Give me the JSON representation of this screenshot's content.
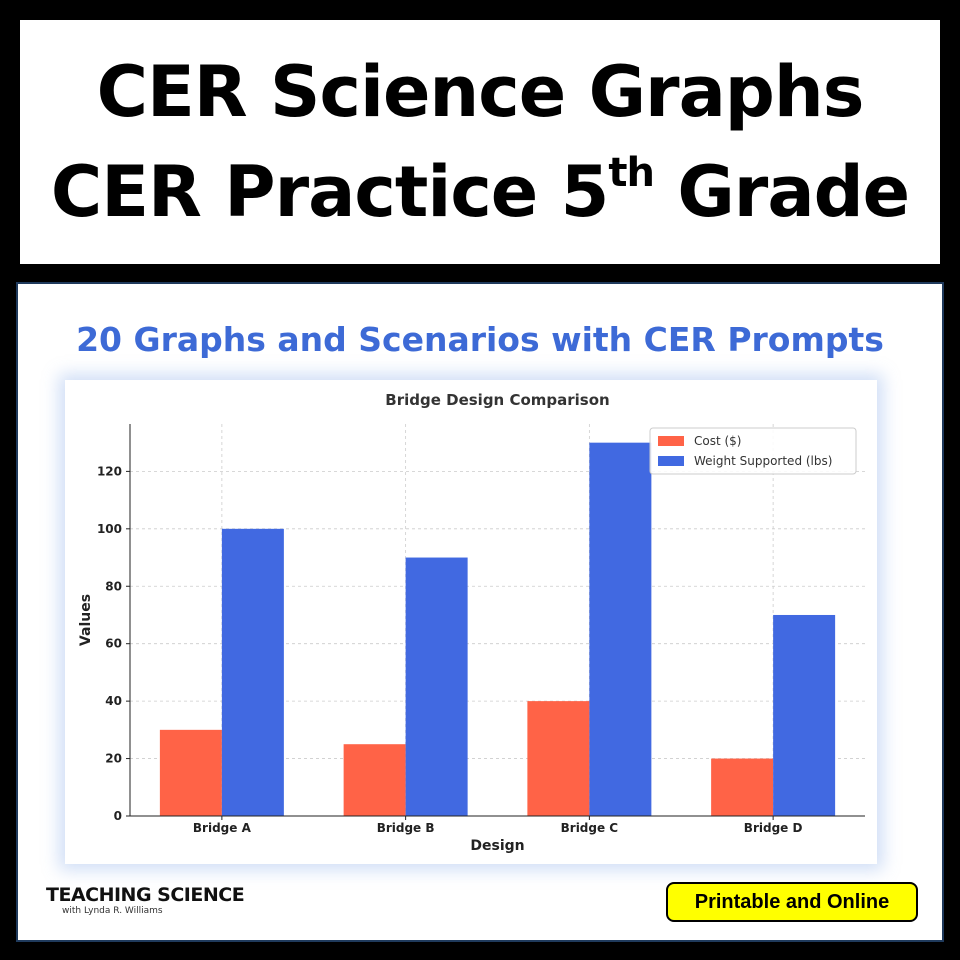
{
  "header": {
    "line1": "CER Science Graphs",
    "line2_main": "CER Practice 5",
    "line2_sup": "th",
    "line2_end": " Grade"
  },
  "subtitle": "20 Graphs and Scenarios with CER Prompts",
  "brand": {
    "main": "TEACHING SCIENCE",
    "sub": "with Lynda R. Williams"
  },
  "badge": "Printable and Online",
  "colors": {
    "accent_blue": "#3d6ad6",
    "badge_yellow": "#ffff00",
    "cost": "#ff6347",
    "weight": "#4169e1"
  },
  "chart_data": {
    "type": "bar",
    "title": "Bridge Design Comparison",
    "xlabel": "Design",
    "ylabel": "Values",
    "categories": [
      "Bridge A",
      "Bridge B",
      "Bridge C",
      "Bridge D"
    ],
    "series": [
      {
        "name": "Cost ($)",
        "values": [
          30,
          25,
          40,
          20
        ],
        "color": "#ff6347"
      },
      {
        "name": "Weight Supported (lbs)",
        "values": [
          100,
          90,
          130,
          70
        ],
        "color": "#4169e1"
      }
    ],
    "ylim": [
      0,
      136.5
    ],
    "yticks": [
      0,
      20,
      40,
      60,
      80,
      100,
      120
    ],
    "grid": true,
    "legend": "top-right"
  }
}
